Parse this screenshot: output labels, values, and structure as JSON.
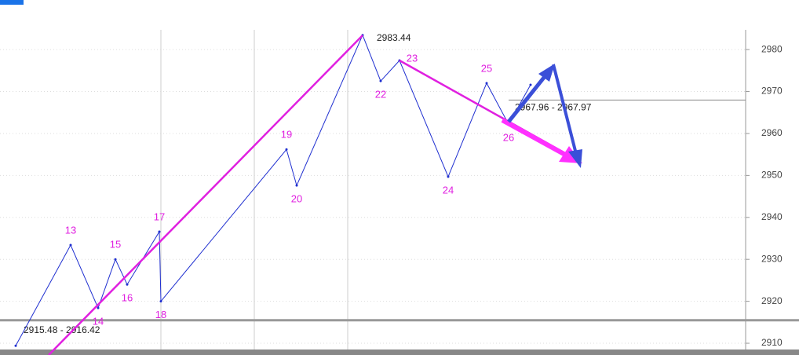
{
  "chart_data": {
    "type": "line",
    "series": [
      {
        "name": null,
        "color": "#1f2fd0",
        "x": [
          20,
          90,
          125,
          147,
          162,
          203,
          205,
          365,
          378,
          462,
          485,
          509,
          571,
          620,
          648,
          676
        ],
        "values": [
          2909.4,
          2933.4,
          2918.4,
          2930.0,
          2924.0,
          2936.6,
          2920.0,
          2956.2,
          2947.6,
          2983.44,
          2972.5,
          2977.4,
          2949.7,
          2972.0,
          2962.2,
          2971.6
        ],
        "point_labels": [
          null,
          "13",
          "14",
          "15",
          "16",
          "17",
          "18",
          "19",
          "20",
          null,
          "22",
          "23",
          "24",
          "25",
          "26",
          null
        ]
      }
    ],
    "annotations": [
      {
        "text": "2983.44",
        "value": 2983.44
      },
      {
        "text": "2967.96 - 2967.97",
        "value": 2967.97
      },
      {
        "text": "2915.48 - 2916.42",
        "value": 2915.48
      }
    ],
    "xlim": [
      0,
      950
    ],
    "ylim": [
      2907.2,
      2984.7
    ],
    "yticks": [
      2910,
      2920,
      2930,
      2940,
      2950,
      2960,
      2970,
      2980
    ],
    "grid": true
  }
}
